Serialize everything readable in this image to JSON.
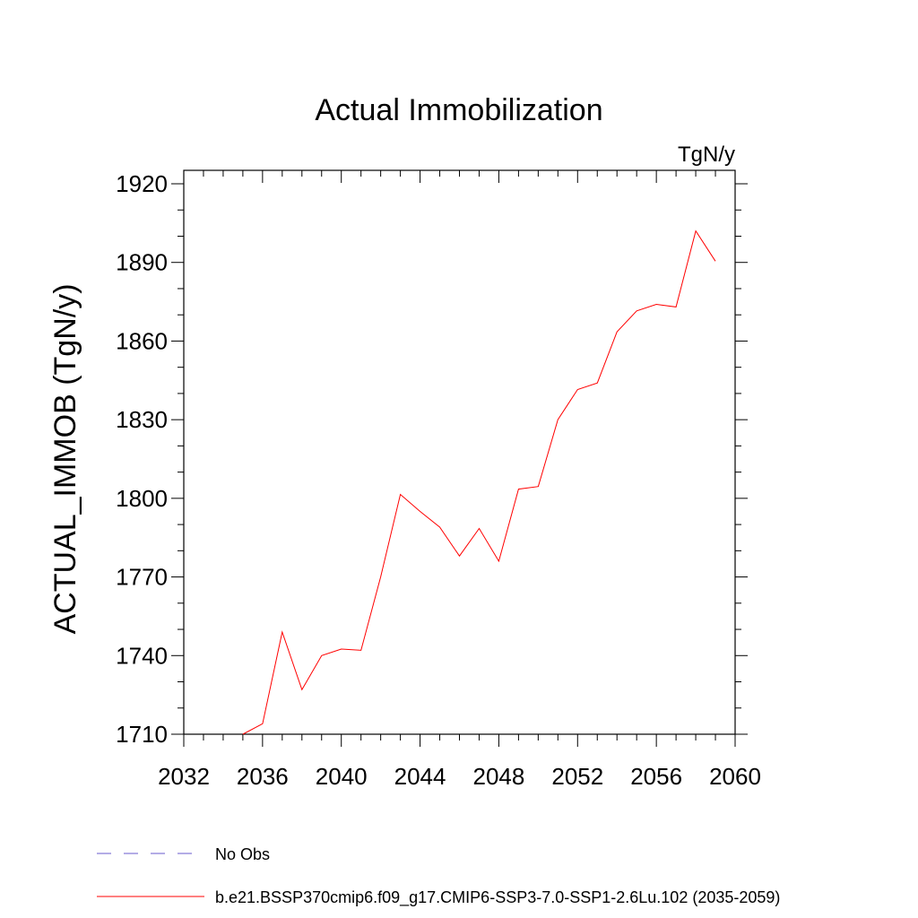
{
  "chart_data": {
    "type": "line",
    "title": "Actual Immobilization",
    "units_label": "TgN/y",
    "ylabel": "ACTUAL_IMMOB  (TgN/y)",
    "xlabel": "",
    "xlim": [
      2032,
      2060
    ],
    "ylim": [
      1710,
      1925
    ],
    "x_ticks": [
      2032,
      2036,
      2040,
      2044,
      2048,
      2052,
      2056,
      2060
    ],
    "x_tick_labels": [
      "2032",
      "2036",
      "2040",
      "2044",
      "2048",
      "2052",
      "2056",
      "2060"
    ],
    "y_ticks": [
      1710,
      1740,
      1770,
      1800,
      1830,
      1860,
      1890,
      1920
    ],
    "y_tick_labels": [
      "1710",
      "1740",
      "1770",
      "1800",
      "1830",
      "1860",
      "1890",
      "1920"
    ],
    "grid": false,
    "series": [
      {
        "name": "b.e21.BSSP370cmip6.f09_g17.CMIP6-SSP3-7.0-SSP1-2.6Lu.102 (2035-2059)",
        "color": "#ff0000",
        "x": [
          2035,
          2036,
          2037,
          2038,
          2039,
          2040,
          2041,
          2042,
          2043,
          2044,
          2045,
          2046,
          2047,
          2048,
          2049,
          2050,
          2051,
          2052,
          2053,
          2054,
          2055,
          2056,
          2057,
          2058,
          2059
        ],
        "values": [
          1710,
          1714,
          1749,
          1727,
          1740,
          1742.5,
          1742,
          1770,
          1801.5,
          1795,
          1789,
          1778,
          1788.5,
          1776,
          1803.5,
          1804.5,
          1830,
          1841.5,
          1844,
          1863.5,
          1871.5,
          1874,
          1873,
          1902,
          1890.5
        ]
      }
    ],
    "legend": [
      {
        "label": "No Obs",
        "color": "#6a5acd",
        "style": "dashed"
      },
      {
        "label": "b.e21.BSSP370cmip6.f09_g17.CMIP6-SSP3-7.0-SSP1-2.6Lu.102 (2035-2059)",
        "color": "#ff0000",
        "style": "solid"
      }
    ],
    "legend_position": "bottom-left"
  }
}
